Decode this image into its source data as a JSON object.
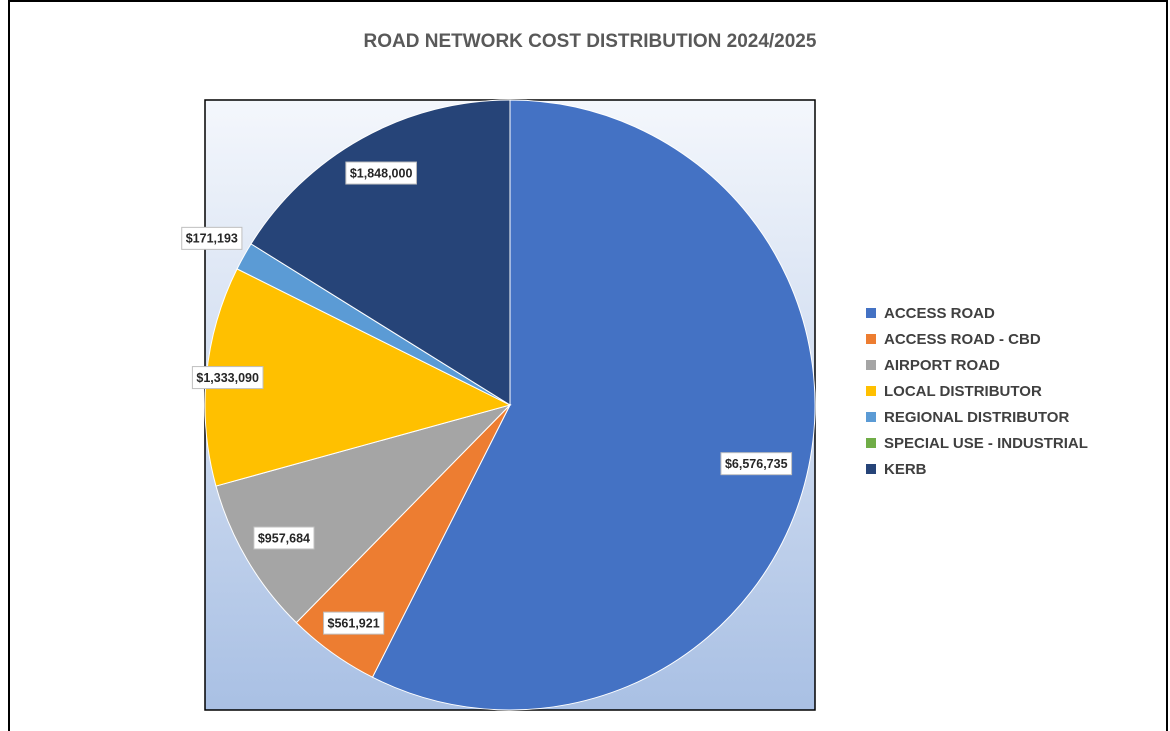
{
  "chart_data": {
    "type": "pie",
    "title": "ROAD NETWORK COST DISTRIBUTION 2024/2025",
    "categories": [
      "ACCESS ROAD",
      "ACCESS ROAD - CBD",
      "AIRPORT ROAD",
      "LOCAL DISTRIBUTOR",
      "REGIONAL DISTRIBUTOR",
      "SPECIAL USE - INDUSTRIAL",
      "KERB"
    ],
    "values": [
      6576735,
      561921,
      957684,
      1333090,
      171193,
      0,
      1848000
    ],
    "value_labels": [
      "$6,576,735",
      "$561,921",
      "$957,684",
      "$1,333,090",
      "$171,193",
      null,
      "$1,848,000"
    ],
    "colors": [
      "#4472c4",
      "#ed7d31",
      "#a5a5a5",
      "#ffc000",
      "#5b9bd5",
      "#70ad47",
      "#264478"
    ],
    "legend": "right"
  }
}
